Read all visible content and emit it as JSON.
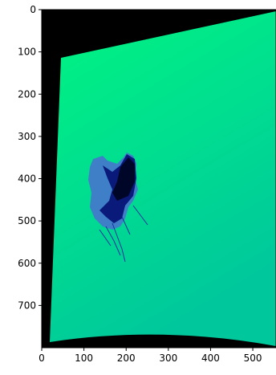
{
  "chart_data": {
    "type": "image",
    "xlim": [
      0,
      555
    ],
    "ylim": [
      800,
      0
    ],
    "xticks": [
      0,
      100,
      200,
      300,
      400,
      500
    ],
    "yticks": [
      0,
      100,
      200,
      300,
      400,
      500,
      600,
      700
    ]
  }
}
